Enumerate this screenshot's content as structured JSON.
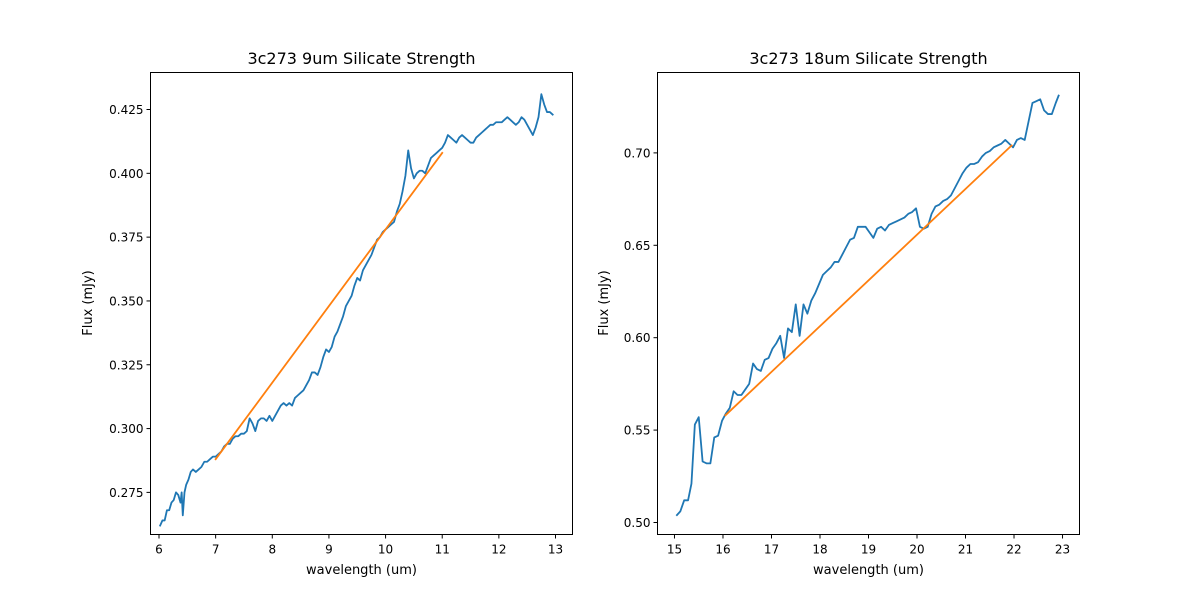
{
  "colors": {
    "spectrum": "#1f77b4",
    "continuum": "#ff7f0e",
    "axes": "#000000"
  },
  "chart_data": [
    {
      "type": "line",
      "title": "3c273 9um Silicate Strength",
      "xlabel": "wavelength (um)",
      "ylabel": "Flux (mJy)",
      "xlim": [
        5.85,
        13.3
      ],
      "ylim": [
        0.2585,
        0.4395
      ],
      "xticks": [
        6,
        7,
        8,
        9,
        10,
        11,
        12,
        13
      ],
      "xtick_labels": [
        "6",
        "7",
        "8",
        "9",
        "10",
        "11",
        "12",
        "13"
      ],
      "yticks": [
        0.275,
        0.3,
        0.325,
        0.35,
        0.375,
        0.4,
        0.425
      ],
      "ytick_labels": [
        "0.275",
        "0.300",
        "0.325",
        "0.350",
        "0.375",
        "0.400",
        "0.425"
      ],
      "grid": false,
      "series": [
        {
          "color": "#1f77b4",
          "x": [
            6.02,
            6.06,
            6.1,
            6.14,
            6.18,
            6.22,
            6.26,
            6.3,
            6.34,
            6.38,
            6.4,
            6.42,
            6.45,
            6.48,
            6.52,
            6.56,
            6.6,
            6.65,
            6.7,
            6.75,
            6.8,
            6.85,
            6.9,
            6.95,
            7.0,
            7.05,
            7.1,
            7.15,
            7.2,
            7.25,
            7.3,
            7.35,
            7.4,
            7.45,
            7.5,
            7.55,
            7.6,
            7.65,
            7.7,
            7.75,
            7.8,
            7.85,
            7.9,
            7.95,
            8.0,
            8.05,
            8.1,
            8.15,
            8.2,
            8.25,
            8.3,
            8.35,
            8.4,
            8.45,
            8.5,
            8.55,
            8.6,
            8.65,
            8.7,
            8.75,
            8.8,
            8.85,
            8.9,
            8.95,
            9.0,
            9.05,
            9.1,
            9.15,
            9.2,
            9.25,
            9.3,
            9.35,
            9.4,
            9.45,
            9.5,
            9.55,
            9.6,
            9.65,
            9.7,
            9.75,
            9.8,
            9.85,
            9.9,
            9.95,
            10.0,
            10.05,
            10.1,
            10.15,
            10.2,
            10.25,
            10.3,
            10.35,
            10.4,
            10.45,
            10.5,
            10.55,
            10.6,
            10.65,
            10.7,
            10.75,
            10.8,
            10.85,
            10.9,
            10.95,
            11.0,
            11.05,
            11.1,
            11.15,
            11.2,
            11.25,
            11.3,
            11.35,
            11.4,
            11.45,
            11.5,
            11.55,
            11.6,
            11.65,
            11.7,
            11.75,
            11.8,
            11.85,
            11.9,
            11.95,
            12.0,
            12.05,
            12.1,
            12.15,
            12.2,
            12.25,
            12.3,
            12.35,
            12.4,
            12.45,
            12.5,
            12.55,
            12.6,
            12.65,
            12.7,
            12.75,
            12.8,
            12.85,
            12.9,
            12.95
          ],
          "y": [
            0.262,
            0.264,
            0.264,
            0.268,
            0.268,
            0.271,
            0.272,
            0.275,
            0.274,
            0.271,
            0.275,
            0.266,
            0.275,
            0.278,
            0.28,
            0.283,
            0.284,
            0.283,
            0.284,
            0.285,
            0.287,
            0.287,
            0.288,
            0.289,
            0.289,
            0.29,
            0.291,
            0.293,
            0.294,
            0.294,
            0.296,
            0.297,
            0.297,
            0.298,
            0.298,
            0.299,
            0.304,
            0.302,
            0.299,
            0.303,
            0.304,
            0.304,
            0.303,
            0.305,
            0.303,
            0.305,
            0.307,
            0.309,
            0.31,
            0.309,
            0.31,
            0.309,
            0.312,
            0.313,
            0.314,
            0.315,
            0.317,
            0.319,
            0.322,
            0.322,
            0.321,
            0.324,
            0.328,
            0.331,
            0.33,
            0.332,
            0.336,
            0.338,
            0.341,
            0.344,
            0.348,
            0.35,
            0.352,
            0.356,
            0.359,
            0.358,
            0.362,
            0.364,
            0.366,
            0.368,
            0.371,
            0.374,
            0.375,
            0.377,
            0.378,
            0.379,
            0.38,
            0.381,
            0.385,
            0.388,
            0.393,
            0.399,
            0.409,
            0.402,
            0.398,
            0.4,
            0.401,
            0.401,
            0.4,
            0.403,
            0.406,
            0.407,
            0.408,
            0.409,
            0.41,
            0.412,
            0.415,
            0.414,
            0.413,
            0.412,
            0.414,
            0.415,
            0.414,
            0.413,
            0.412,
            0.412,
            0.414,
            0.415,
            0.416,
            0.417,
            0.418,
            0.419,
            0.419,
            0.42,
            0.42,
            0.42,
            0.421,
            0.422,
            0.421,
            0.42,
            0.419,
            0.42,
            0.422,
            0.421,
            0.419,
            0.417,
            0.415,
            0.418,
            0.422,
            0.431,
            0.427,
            0.424,
            0.424,
            0.423
          ]
        },
        {
          "color": "#ff7f0e",
          "x": [
            7.0,
            11.0
          ],
          "y": [
            0.288,
            0.408
          ]
        }
      ]
    },
    {
      "type": "line",
      "title": "3c273 18um Silicate Strength",
      "xlabel": "wavelength (um)",
      "ylabel": "Flux (mJy)",
      "xlim": [
        14.65,
        23.35
      ],
      "ylim": [
        0.4935,
        0.7435
      ],
      "xticks": [
        15,
        16,
        17,
        18,
        19,
        20,
        21,
        22,
        23
      ],
      "xtick_labels": [
        "15",
        "16",
        "17",
        "18",
        "19",
        "20",
        "21",
        "22",
        "23"
      ],
      "yticks": [
        0.5,
        0.55,
        0.6,
        0.65,
        0.7
      ],
      "ytick_labels": [
        "0.50",
        "0.55",
        "0.60",
        "0.65",
        "0.70"
      ],
      "grid": false,
      "series": [
        {
          "color": "#1f77b4",
          "x": [
            15.05,
            15.12,
            15.2,
            15.28,
            15.35,
            15.42,
            15.5,
            15.58,
            15.66,
            15.74,
            15.82,
            15.9,
            15.98,
            16.06,
            16.14,
            16.22,
            16.3,
            16.38,
            16.46,
            16.54,
            16.62,
            16.7,
            16.78,
            16.86,
            16.94,
            17.02,
            17.1,
            17.18,
            17.26,
            17.34,
            17.42,
            17.5,
            17.58,
            17.66,
            17.74,
            17.82,
            17.9,
            17.98,
            18.06,
            18.14,
            18.22,
            18.3,
            18.38,
            18.46,
            18.54,
            18.62,
            18.7,
            18.78,
            18.86,
            18.94,
            19.02,
            19.1,
            19.18,
            19.26,
            19.34,
            19.42,
            19.5,
            19.58,
            19.66,
            19.74,
            19.82,
            19.9,
            19.98,
            20.06,
            20.14,
            20.22,
            20.3,
            20.38,
            20.46,
            20.54,
            20.62,
            20.7,
            20.78,
            20.86,
            20.94,
            21.02,
            21.1,
            21.18,
            21.26,
            21.34,
            21.42,
            21.5,
            21.58,
            21.66,
            21.74,
            21.82,
            21.9,
            21.98,
            22.06,
            22.14,
            22.22,
            22.3,
            22.38,
            22.46,
            22.54,
            22.62,
            22.7,
            22.78,
            22.86,
            22.92
          ],
          "y": [
            0.504,
            0.506,
            0.512,
            0.512,
            0.521,
            0.553,
            0.557,
            0.533,
            0.532,
            0.532,
            0.546,
            0.547,
            0.555,
            0.559,
            0.562,
            0.571,
            0.569,
            0.569,
            0.572,
            0.575,
            0.586,
            0.583,
            0.582,
            0.588,
            0.589,
            0.594,
            0.597,
            0.601,
            0.589,
            0.605,
            0.603,
            0.618,
            0.601,
            0.618,
            0.613,
            0.62,
            0.624,
            0.629,
            0.634,
            0.636,
            0.638,
            0.641,
            0.641,
            0.645,
            0.649,
            0.653,
            0.654,
            0.66,
            0.66,
            0.66,
            0.657,
            0.654,
            0.659,
            0.66,
            0.658,
            0.661,
            0.662,
            0.663,
            0.664,
            0.665,
            0.667,
            0.668,
            0.67,
            0.66,
            0.659,
            0.66,
            0.667,
            0.671,
            0.672,
            0.674,
            0.675,
            0.677,
            0.681,
            0.685,
            0.689,
            0.692,
            0.694,
            0.694,
            0.695,
            0.698,
            0.7,
            0.701,
            0.703,
            0.704,
            0.705,
            0.707,
            0.705,
            0.703,
            0.707,
            0.708,
            0.707,
            0.717,
            0.727,
            0.728,
            0.729,
            0.723,
            0.721,
            0.721,
            0.727,
            0.731
          ]
        },
        {
          "color": "#ff7f0e",
          "x": [
            16.05,
            21.95
          ],
          "y": [
            0.558,
            0.704
          ]
        }
      ]
    }
  ]
}
